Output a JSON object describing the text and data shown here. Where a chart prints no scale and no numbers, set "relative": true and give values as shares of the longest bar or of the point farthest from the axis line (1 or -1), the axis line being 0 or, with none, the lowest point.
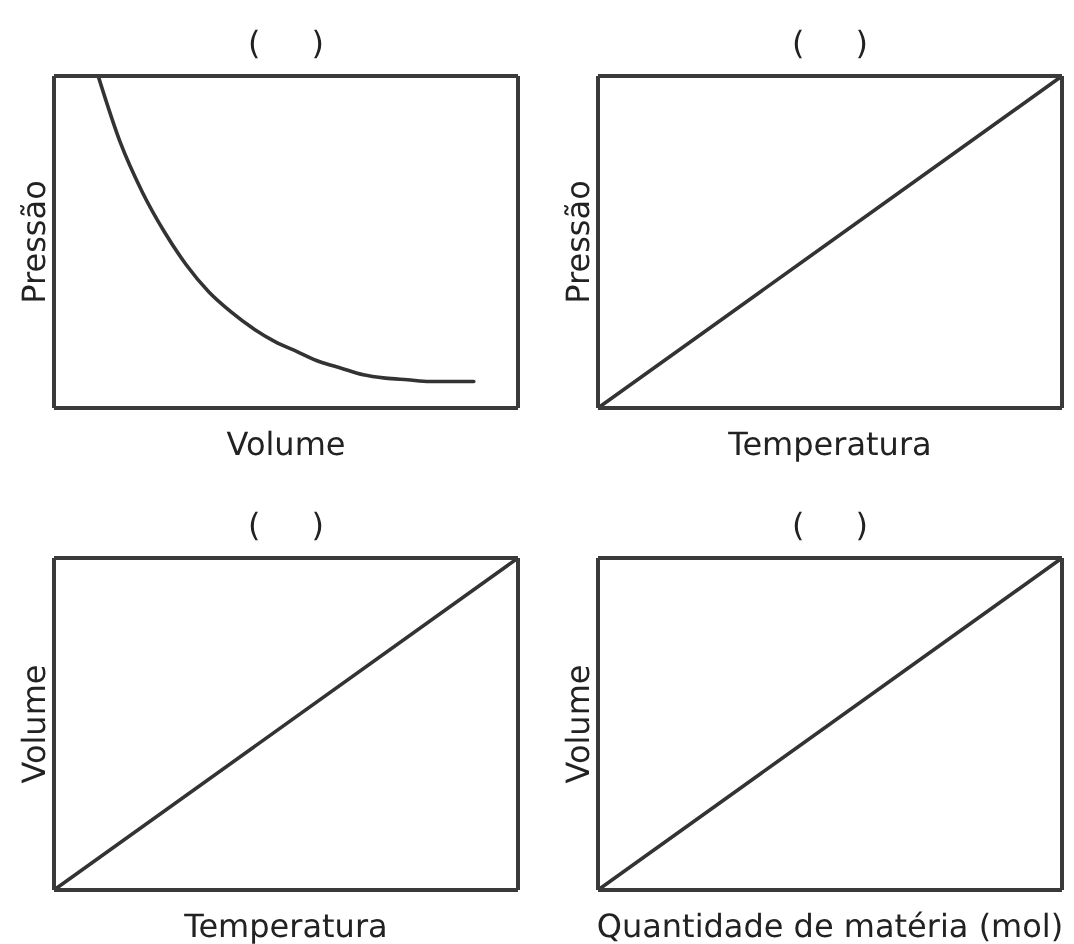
{
  "chart_data": [
    {
      "type": "line",
      "title": "(     )",
      "xlabel": "Volume",
      "ylabel": "Pressão",
      "relative": true,
      "marker": "none",
      "color": "#333333",
      "categories": [
        null,
        null,
        null,
        null,
        null,
        null,
        null,
        null,
        null,
        null,
        null,
        null,
        null,
        null,
        null,
        null,
        null,
        null,
        null,
        null,
        null,
        null
      ],
      "values": [
        null,
        null,
        1.0,
        0.8,
        0.65,
        0.53,
        0.43,
        0.35,
        0.29,
        0.24,
        0.2,
        0.17,
        0.14,
        0.12,
        0.1,
        0.09,
        0.085,
        0.08,
        0.08,
        0.08,
        null,
        null
      ]
    },
    {
      "type": "line",
      "title": "(     )",
      "xlabel": "Temperatura",
      "ylabel": "Pressão",
      "relative": true,
      "marker": "none",
      "color": "#333333",
      "categories": [
        null,
        null
      ],
      "values": [
        0,
        1
      ]
    },
    {
      "type": "line",
      "title": "(     )",
      "xlabel": "Temperatura",
      "ylabel": "Volume",
      "relative": true,
      "marker": "none",
      "color": "#333333",
      "categories": [
        null,
        null
      ],
      "values": [
        0,
        1
      ]
    },
    {
      "type": "line",
      "title": "(     )",
      "xlabel": "Quantidade de matéria (mol)",
      "ylabel": "Volume",
      "relative": true,
      "marker": "none",
      "color": "#333333",
      "categories": [
        null,
        null
      ],
      "values": [
        0,
        1
      ]
    }
  ]
}
